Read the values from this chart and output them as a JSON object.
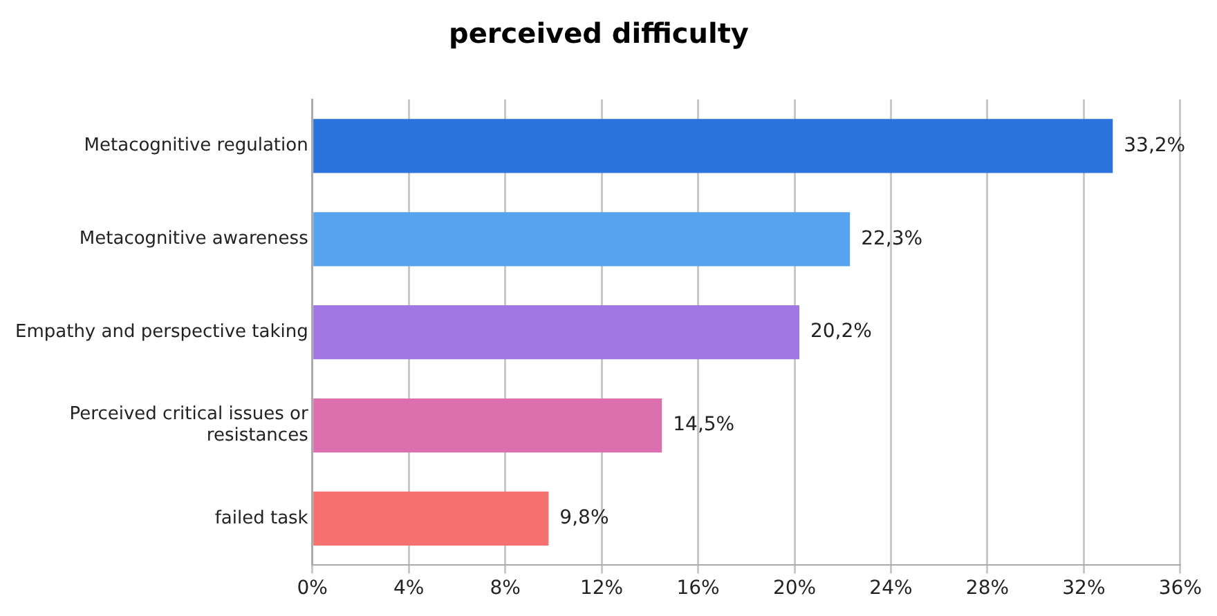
{
  "chart_data": {
    "type": "bar",
    "orientation": "horizontal",
    "title": "perceived difficulty",
    "categories": [
      "Metacognitive regulation",
      "Metacognitive awareness",
      "Empathy and perspective taking",
      "Perceived critical issues or resistances",
      "failed task"
    ],
    "values": [
      33.2,
      22.3,
      20.2,
      14.5,
      9.8
    ],
    "colors": [
      "#2b73dd",
      "#58a3f0",
      "#a077e3",
      "#dc6fae",
      "#f67170"
    ],
    "value_labels": [
      "33,2%",
      "22,3%",
      "20,2%",
      "14,5%",
      "9,8%"
    ],
    "xlim": [
      0,
      36
    ],
    "xticks": [
      {
        "value": 0,
        "label": "0%"
      },
      {
        "value": 4,
        "label": "4%"
      },
      {
        "value": 8,
        "label": "8%"
      },
      {
        "value": 12,
        "label": "12%"
      },
      {
        "value": 16,
        "label": "16%"
      },
      {
        "value": 20,
        "label": "20%"
      },
      {
        "value": 24,
        "label": "24%"
      },
      {
        "value": 28,
        "label": "28%"
      },
      {
        "value": 32,
        "label": "32%"
      },
      {
        "value": 36,
        "label": "36%"
      }
    ],
    "grid": "x",
    "legend": false
  }
}
